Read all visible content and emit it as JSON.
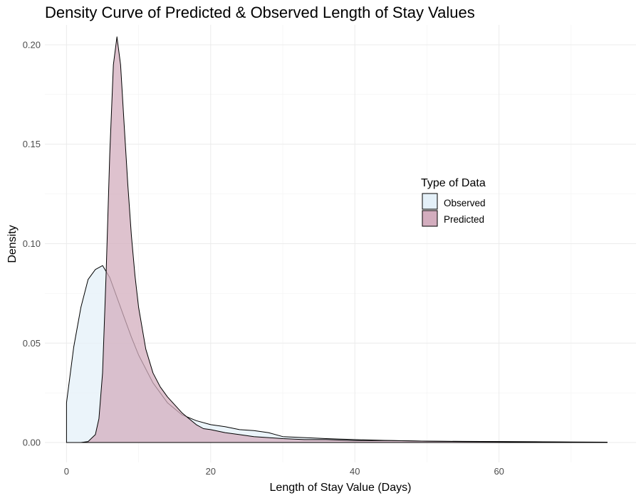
{
  "chart_data": {
    "type": "area",
    "title": "Density Curve of Predicted & Observed Length of Stay Values",
    "xlabel": "Length of Stay Value (Days)",
    "ylabel": "Density",
    "xlim": [
      -3,
      79
    ],
    "ylim": [
      -0.01,
      0.21
    ],
    "x_ticks": [
      0,
      20,
      40,
      60
    ],
    "x_tick_labels": [
      "0",
      "20",
      "40",
      "60"
    ],
    "y_ticks": [
      0,
      0.05,
      0.1,
      0.15,
      0.2
    ],
    "y_tick_labels": [
      "0.00",
      "0.05",
      "0.10",
      "0.15",
      "0.20"
    ],
    "grid": true,
    "legend": {
      "title": "Type of Data",
      "placement": "right-center",
      "entries": [
        "Observed",
        "Predicted"
      ]
    },
    "series": [
      {
        "name": "Observed",
        "fill": "#e4f0f8",
        "x": [
          0,
          1,
          2,
          3,
          4,
          5,
          6,
          7,
          8,
          9,
          10,
          11,
          12,
          13,
          14,
          15,
          16,
          18,
          20,
          22,
          24,
          26,
          28,
          30,
          33,
          36,
          40,
          45,
          50,
          55,
          60,
          65,
          70,
          75
        ],
        "y": [
          0.02,
          0.048,
          0.068,
          0.082,
          0.087,
          0.089,
          0.083,
          0.073,
          0.063,
          0.053,
          0.044,
          0.037,
          0.03,
          0.025,
          0.02,
          0.017,
          0.014,
          0.011,
          0.009,
          0.008,
          0.0065,
          0.006,
          0.005,
          0.003,
          0.0025,
          0.002,
          0.0015,
          0.001,
          0.0007,
          0.0006,
          0.0005,
          0.0004,
          0.0003,
          0.0002
        ]
      },
      {
        "name": "Predicted",
        "fill": "#d3adbe",
        "x": [
          0,
          2,
          3,
          4,
          4.5,
          5,
          5.5,
          6,
          6.5,
          7,
          7.5,
          8,
          8.5,
          9,
          9.5,
          10,
          11,
          12,
          13,
          14,
          15,
          16,
          17,
          18,
          19,
          20,
          22,
          24,
          26,
          28,
          30,
          33,
          36,
          40,
          45,
          50,
          55,
          60,
          65,
          70,
          75
        ],
        "y": [
          0,
          0,
          0.0005,
          0.004,
          0.012,
          0.035,
          0.085,
          0.145,
          0.19,
          0.204,
          0.19,
          0.16,
          0.13,
          0.104,
          0.084,
          0.068,
          0.047,
          0.035,
          0.028,
          0.023,
          0.019,
          0.015,
          0.012,
          0.009,
          0.007,
          0.0065,
          0.005,
          0.004,
          0.003,
          0.0025,
          0.002,
          0.0015,
          0.0015,
          0.001,
          0.001,
          0.0007,
          0.0005,
          0.0004,
          0.0003,
          0.0002,
          0.0001
        ]
      }
    ]
  }
}
